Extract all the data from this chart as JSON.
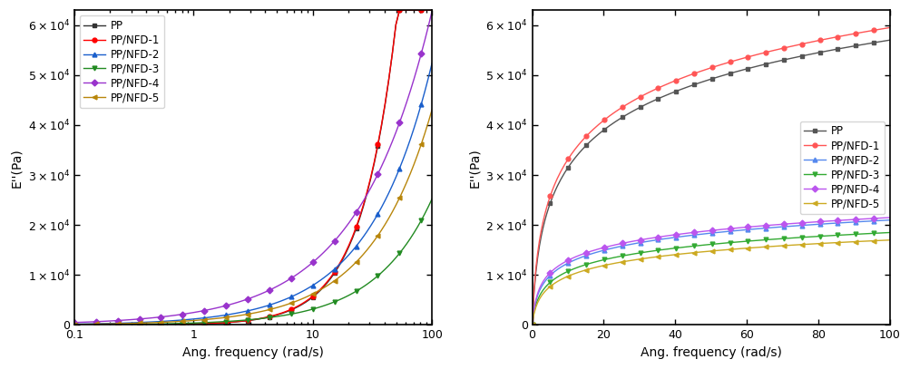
{
  "series_labels": [
    "PP",
    "PP/NFD-1",
    "PP/NFD-2",
    "PP/NFD-3",
    "PP/NFD-4",
    "PP/NFD-5"
  ],
  "colors": [
    "#333333",
    "#ff0000",
    "#1a5fcc",
    "#228b22",
    "#9933cc",
    "#b8860b"
  ],
  "markers": [
    "s",
    "o",
    "^",
    "v",
    "D",
    "<"
  ],
  "ylabel": "E''(Pa)",
  "xlabel": "Ang. frequency (rad/s)",
  "yticks": [
    0,
    10000,
    20000,
    30000,
    40000,
    50000,
    60000
  ],
  "ylim": [
    0,
    63000
  ]
}
